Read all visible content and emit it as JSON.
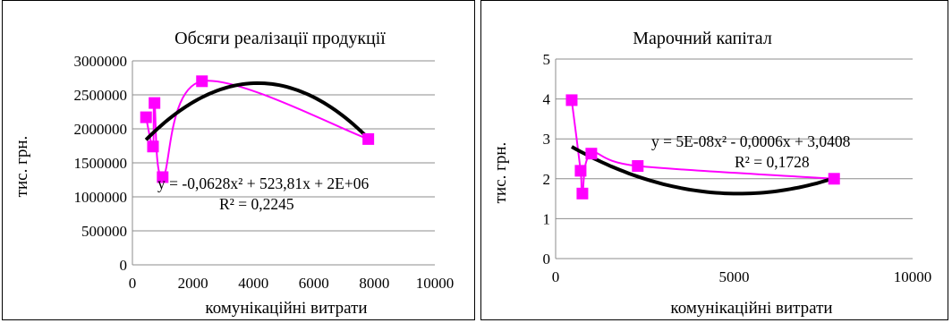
{
  "chart_data": [
    {
      "type": "scatter",
      "title": "Обсяги реалізації продукції",
      "xlabel": "комунікаційні витрати",
      "ylabel": "тис. грн.",
      "xlim": [
        0,
        10000
      ],
      "ylim": [
        0,
        3000000
      ],
      "x_ticks": [
        "0",
        "2000",
        "4000",
        "6000",
        "8000",
        "10000"
      ],
      "y_ticks": [
        "0",
        "500000",
        "1000000",
        "1500000",
        "2000000",
        "2500000",
        "3000000"
      ],
      "grid": "horizontal",
      "colors": {
        "series": "#ff00ff",
        "trendline": "#000000"
      },
      "series": [
        {
          "points": [
            {
              "x": 450,
              "y": 2170000
            },
            {
              "x": 680,
              "y": 1740000
            },
            {
              "x": 730,
              "y": 2380000
            },
            {
              "x": 1000,
              "y": 1290000
            },
            {
              "x": 2300,
              "y": 2700000
            },
            {
              "x": 7800,
              "y": 1850000
            }
          ]
        }
      ],
      "trendline": {
        "type": "polynomial",
        "equation": "y = -0,0628x² + 523,81x + 2E+06",
        "r_squared": "R² = 0,2245",
        "x_range": [
          450,
          7800
        ]
      }
    },
    {
      "type": "scatter",
      "title": "Марочний капітал",
      "xlabel": "комунікаційні витрати",
      "ylabel": "тис. грн.",
      "xlim": [
        0,
        10000
      ],
      "ylim": [
        0,
        5
      ],
      "x_ticks": [
        "0",
        "5000",
        "10000"
      ],
      "y_ticks": [
        "0",
        "1",
        "2",
        "3",
        "4",
        "5"
      ],
      "grid": "horizontal",
      "colors": {
        "series": "#ff00ff",
        "trendline": "#000000"
      },
      "series": [
        {
          "points": [
            {
              "x": 450,
              "y": 3.97
            },
            {
              "x": 700,
              "y": 2.2
            },
            {
              "x": 750,
              "y": 1.63
            },
            {
              "x": 1000,
              "y": 2.63
            },
            {
              "x": 2300,
              "y": 2.32
            },
            {
              "x": 7800,
              "y": 2.0
            }
          ]
        }
      ],
      "trendline": {
        "type": "polynomial",
        "equation": "y = 5E-08x² - 0,0006x + 3,0408",
        "r_squared": "R² = 0,1728",
        "x_range": [
          450,
          7800
        ]
      }
    }
  ]
}
